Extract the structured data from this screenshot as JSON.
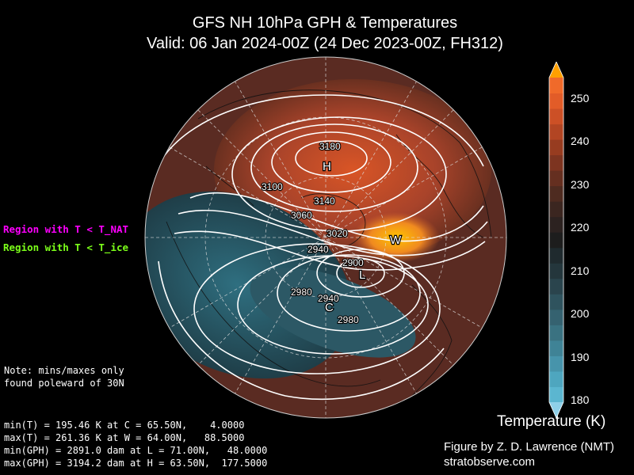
{
  "title": {
    "line1": "GFS NH 10hPa GPH & Temperatures",
    "line2": "Valid: 06 Jan 2024-00Z  (24 Dec 2023-00Z, FH312)"
  },
  "legend": {
    "nat_label": "Region with T < T_NAT",
    "nat_color": "#ff00ff",
    "ice_label": "Region with T < T_ice",
    "ice_color": "#7cff1a"
  },
  "note": {
    "line1": "Note: mins/maxes only",
    "line2": "found poleward of 30N"
  },
  "stats": {
    "line1": "min(T) = 195.46 K at C = 65.50N,    4.0000",
    "line2": "max(T) = 261.36 K at W = 64.00N,   88.5000",
    "line3": "min(GPH) = 2891.0 dam at L = 71.00N,   48.0000",
    "line4": "max(GPH) = 3194.2 dam at H = 63.50N,  177.5000"
  },
  "colorbar": {
    "title": "Temperature (K)",
    "ticks": [
      "250",
      "240",
      "230",
      "220",
      "210",
      "200",
      "190",
      "180"
    ],
    "min": 180,
    "max": 255,
    "colors": [
      "#5bb6d0",
      "#4ea6bf",
      "#4794ab",
      "#3f8396",
      "#3a7281",
      "#356270",
      "#2f535e",
      "#2a444d",
      "#24363c",
      "#1f2a2e",
      "#1d1d1d",
      "#2c2220",
      "#3b2620",
      "#4e2b20",
      "#652f20",
      "#7d3420",
      "#973c20",
      "#b24523",
      "#cc5026",
      "#e25c28",
      "#f06a2a"
    ],
    "over_color": "#ffa000",
    "under_color": "#8fd0e8"
  },
  "map": {
    "contour_labels": [
      "3180",
      "3100",
      "3140",
      "3060",
      "3020",
      "2940",
      "2900",
      "2980",
      "2940",
      "2980"
    ],
    "markers": {
      "H": "H",
      "L": "L",
      "C": "C",
      "W": "W"
    }
  },
  "credit": {
    "line1": "Figure by Z. D. Lawrence (NMT)",
    "line2": "stratobserve.com"
  }
}
